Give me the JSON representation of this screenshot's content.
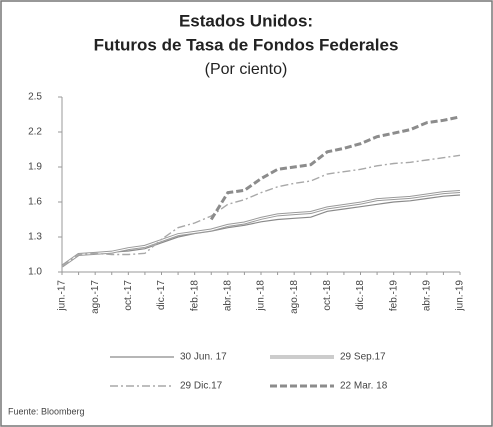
{
  "chart_data": {
    "type": "line",
    "title": "Estados Unidos:",
    "title_line2": "Futuros de Tasa de Fondos Federales",
    "subtitle": "(Por ciento)",
    "source": "Fuente: Bloomberg",
    "categories": [
      "jun.-17",
      null,
      "ago.-17",
      null,
      "oct.-17",
      null,
      "dic.-17",
      null,
      "feb.-18",
      null,
      "abr.-18",
      null,
      "jun.-18",
      null,
      "ago.-18",
      null,
      "oct.-18",
      null,
      "dic.-18",
      null,
      "feb.-19",
      null,
      "abr.-19",
      null,
      "jun.-19"
    ],
    "ylim": [
      1,
      2.5
    ],
    "yticks": [
      {
        "value": 1,
        "label": "1.0"
      },
      1.3,
      1.6,
      1.9,
      2.2,
      2.5
    ],
    "grid": false,
    "legend": "bottom",
    "series": [
      {
        "name": "30 Jun. 17",
        "color": "#8a8a8a",
        "style": "solid",
        "values": [
          1.05,
          1.15,
          1.16,
          1.17,
          1.18,
          1.2,
          1.25,
          1.3,
          1.33,
          1.35,
          1.38,
          1.4,
          1.43,
          1.45,
          1.46,
          1.47,
          1.52,
          1.54,
          1.56,
          1.58,
          1.6,
          1.61,
          1.63,
          1.65,
          1.66
        ]
      },
      {
        "name": "29 Sep.17",
        "color": "#9a9a9a",
        "style": "double",
        "values": [
          1.05,
          1.15,
          1.16,
          1.17,
          1.2,
          1.22,
          1.27,
          1.32,
          1.34,
          1.36,
          1.4,
          1.42,
          1.46,
          1.49,
          1.5,
          1.51,
          1.55,
          1.57,
          1.59,
          1.62,
          1.63,
          1.64,
          1.66,
          1.68,
          1.69
        ]
      },
      {
        "name": "29 Dic.17",
        "color": "#a8a8a8",
        "style": "dashdot",
        "values": [
          1.05,
          1.15,
          1.16,
          1.15,
          1.15,
          1.16,
          1.28,
          1.38,
          1.42,
          1.48,
          1.58,
          1.62,
          1.68,
          1.73,
          1.76,
          1.78,
          1.84,
          1.86,
          1.88,
          1.91,
          1.93,
          1.94,
          1.96,
          1.98,
          2.0
        ]
      },
      {
        "name": "22 Mar. 18",
        "color": "#8c8c8c",
        "style": "dashed",
        "values": [
          null,
          null,
          null,
          null,
          null,
          null,
          null,
          null,
          null,
          1.45,
          1.68,
          1.7,
          1.8,
          1.88,
          1.9,
          1.92,
          2.03,
          2.06,
          2.1,
          2.16,
          2.19,
          2.22,
          2.28,
          2.3,
          2.33
        ]
      }
    ]
  }
}
